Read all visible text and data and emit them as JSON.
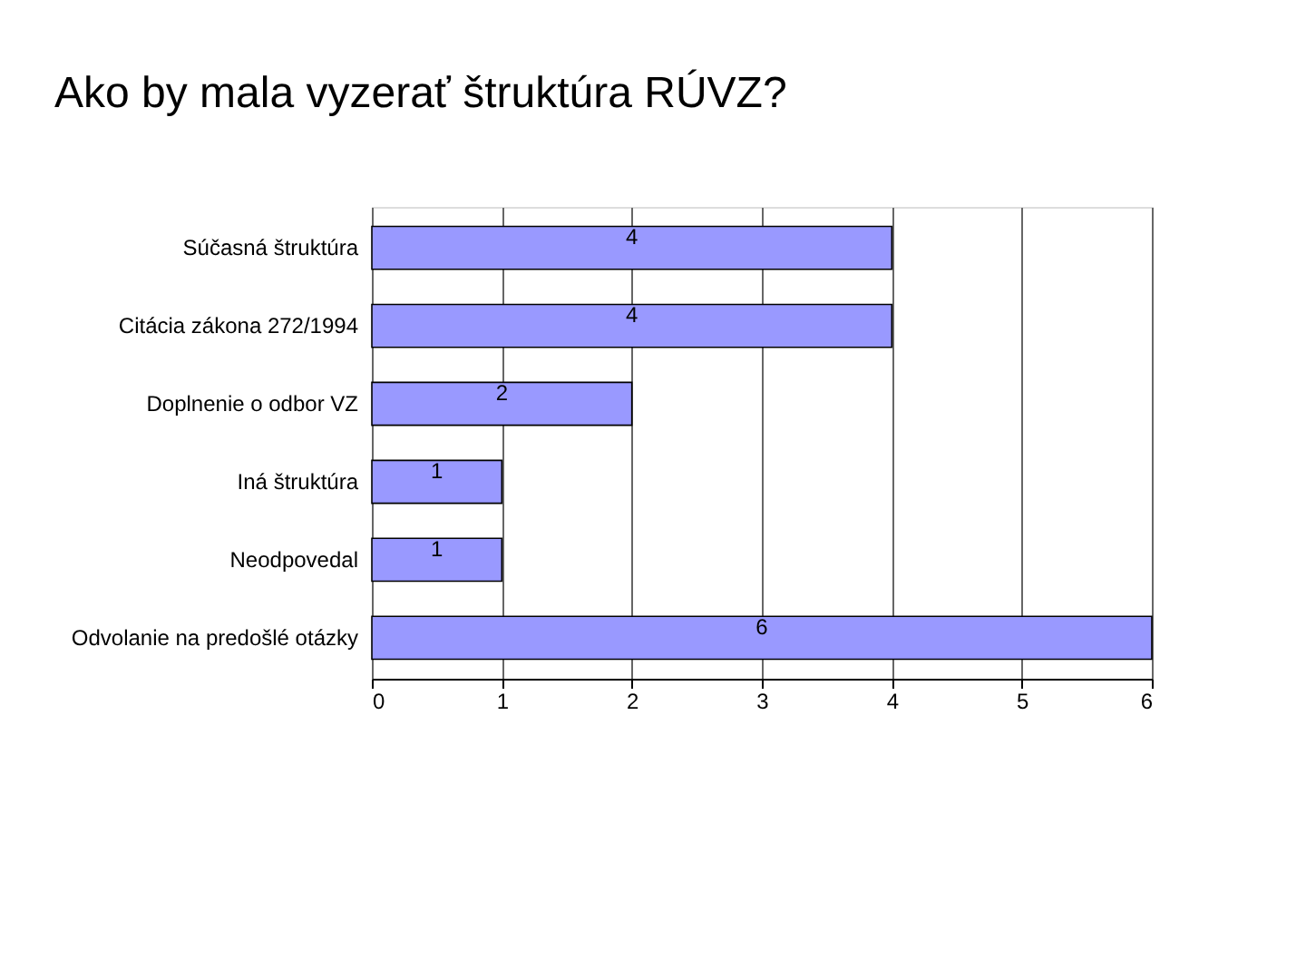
{
  "chart_data": {
    "type": "bar",
    "orientation": "horizontal",
    "title": "Ako by mala vyzerať štruktúra RÚVZ?",
    "categories": [
      "Súčasná štruktúra",
      "Citácia zákona 272/1994",
      "Doplnenie o odbor VZ",
      "Iná štruktúra",
      "Neodpovedal",
      "Odvolanie na predošlé otázky"
    ],
    "values": [
      4,
      4,
      2,
      1,
      1,
      6
    ],
    "color": "#9999ff",
    "xlim": [
      0,
      6
    ],
    "xticks": [
      0,
      1,
      2,
      3,
      4,
      5,
      6
    ],
    "grid": "x",
    "data_labels": true
  }
}
